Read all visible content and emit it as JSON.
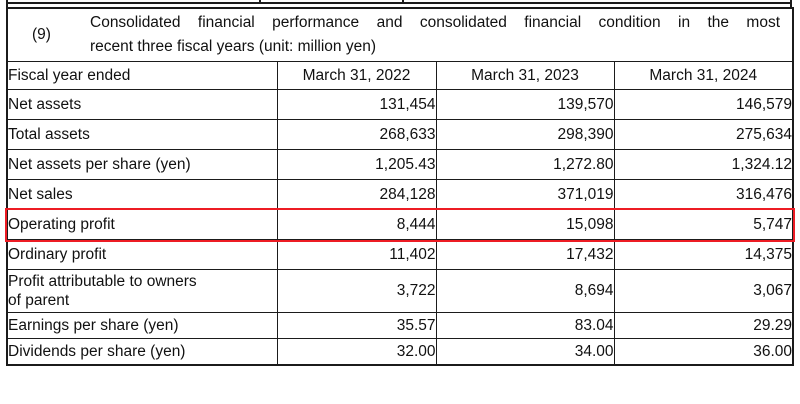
{
  "document": {
    "section_index": "(9)",
    "title_line1": "Consolidated financial performance and consolidated financial condition in the most",
    "title_line2": "recent three fiscal years (unit: million yen)",
    "table": {
      "header": [
        "Fiscal year ended",
        "March 31, 2022",
        "March 31, 2023",
        "March 31, 2024"
      ],
      "rows": [
        {
          "label": "Net assets",
          "values": [
            "131,454",
            "139,570",
            "146,579"
          ],
          "highlighted": false
        },
        {
          "label": "Total assets",
          "values": [
            "268,633",
            "298,390",
            "275,634"
          ],
          "highlighted": false
        },
        {
          "label": "Net assets per share (yen)",
          "values": [
            "1,205.43",
            "1,272.80",
            "1,324.12"
          ],
          "highlighted": false
        },
        {
          "label": "Net sales",
          "values": [
            "284,128",
            "371,019",
            "316,476"
          ],
          "highlighted": false
        },
        {
          "label": "Operating profit",
          "values": [
            "8,444",
            "15,098",
            "5,747"
          ],
          "highlighted": true
        },
        {
          "label": "Ordinary profit",
          "values": [
            "11,402",
            "17,432",
            "14,375"
          ],
          "highlighted": false
        },
        {
          "label": "Profit attributable to owners\nof parent",
          "values": [
            "3,722",
            "8,694",
            "3,067"
          ],
          "highlighted": false
        },
        {
          "label": "Earnings per share (yen)",
          "values": [
            "35.57",
            "83.04",
            "29.29"
          ],
          "highlighted": false
        },
        {
          "label": "Dividends per share (yen)",
          "values": [
            "32.00",
            "34.00",
            "36.00"
          ],
          "highlighted": false
        }
      ]
    },
    "colors": {
      "highlight_border": "#ed1c24",
      "grid": "#1b1b1b",
      "background": "#ffffff",
      "text": "#111111"
    }
  }
}
